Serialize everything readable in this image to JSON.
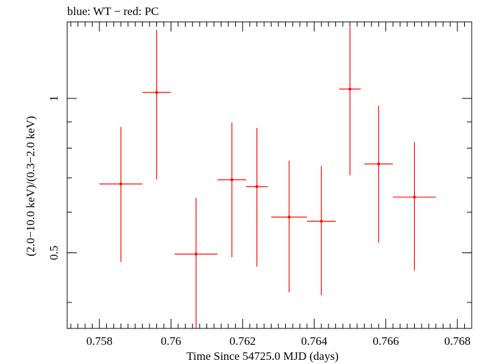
{
  "chart_data": {
    "type": "scatter",
    "title": "blue: WT − red: PC",
    "xlabel": "Time Since 54725.0 MJD (days)",
    "ylabel": "(2.0−10.0 keV)/(0.3−2.0 keV)",
    "xlim": [
      0.7571,
      0.7684
    ],
    "ylim": [
      0.356,
      1.41
    ],
    "yscale": "log",
    "x_ticks": [
      0.758,
      0.76,
      0.762,
      0.764,
      0.766,
      0.768
    ],
    "x_tick_labels": [
      "0.758",
      "0.76",
      "0.762",
      "0.764",
      "0.766",
      "0.768"
    ],
    "y_ticks": [
      0.5,
      1
    ],
    "y_tick_labels": [
      "0.5",
      "1"
    ],
    "series": [
      {
        "name": "PC",
        "color": "#ff0000",
        "points": [
          {
            "x": 0.7586,
            "xerr": 0.0006,
            "y": 0.681,
            "ylo": 0.48,
            "yhi": 0.88
          },
          {
            "x": 0.7596,
            "xerr": 0.0004,
            "y": 1.027,
            "ylo": 0.695,
            "yhi": 1.36
          },
          {
            "x": 0.7607,
            "xerr": 0.0006,
            "y": 0.497,
            "ylo": 0.356,
            "yhi": 0.64
          },
          {
            "x": 0.7617,
            "xerr": 0.0004,
            "y": 0.694,
            "ylo": 0.49,
            "yhi": 0.898
          },
          {
            "x": 0.7624,
            "xerr": 0.0003,
            "y": 0.673,
            "ylo": 0.47,
            "yhi": 0.876
          },
          {
            "x": 0.7633,
            "xerr": 0.0005,
            "y": 0.587,
            "ylo": 0.419,
            "yhi": 0.756
          },
          {
            "x": 0.7642,
            "xerr": 0.0004,
            "y": 0.576,
            "ylo": 0.413,
            "yhi": 0.738
          },
          {
            "x": 0.765,
            "xerr": 0.0003,
            "y": 1.043,
            "ylo": 0.708,
            "yhi": 1.378
          },
          {
            "x": 0.7658,
            "xerr": 0.0004,
            "y": 0.745,
            "ylo": 0.523,
            "yhi": 0.968
          },
          {
            "x": 0.7668,
            "xerr": 0.0006,
            "y": 0.642,
            "ylo": 0.462,
            "yhi": 0.822
          }
        ]
      }
    ]
  }
}
